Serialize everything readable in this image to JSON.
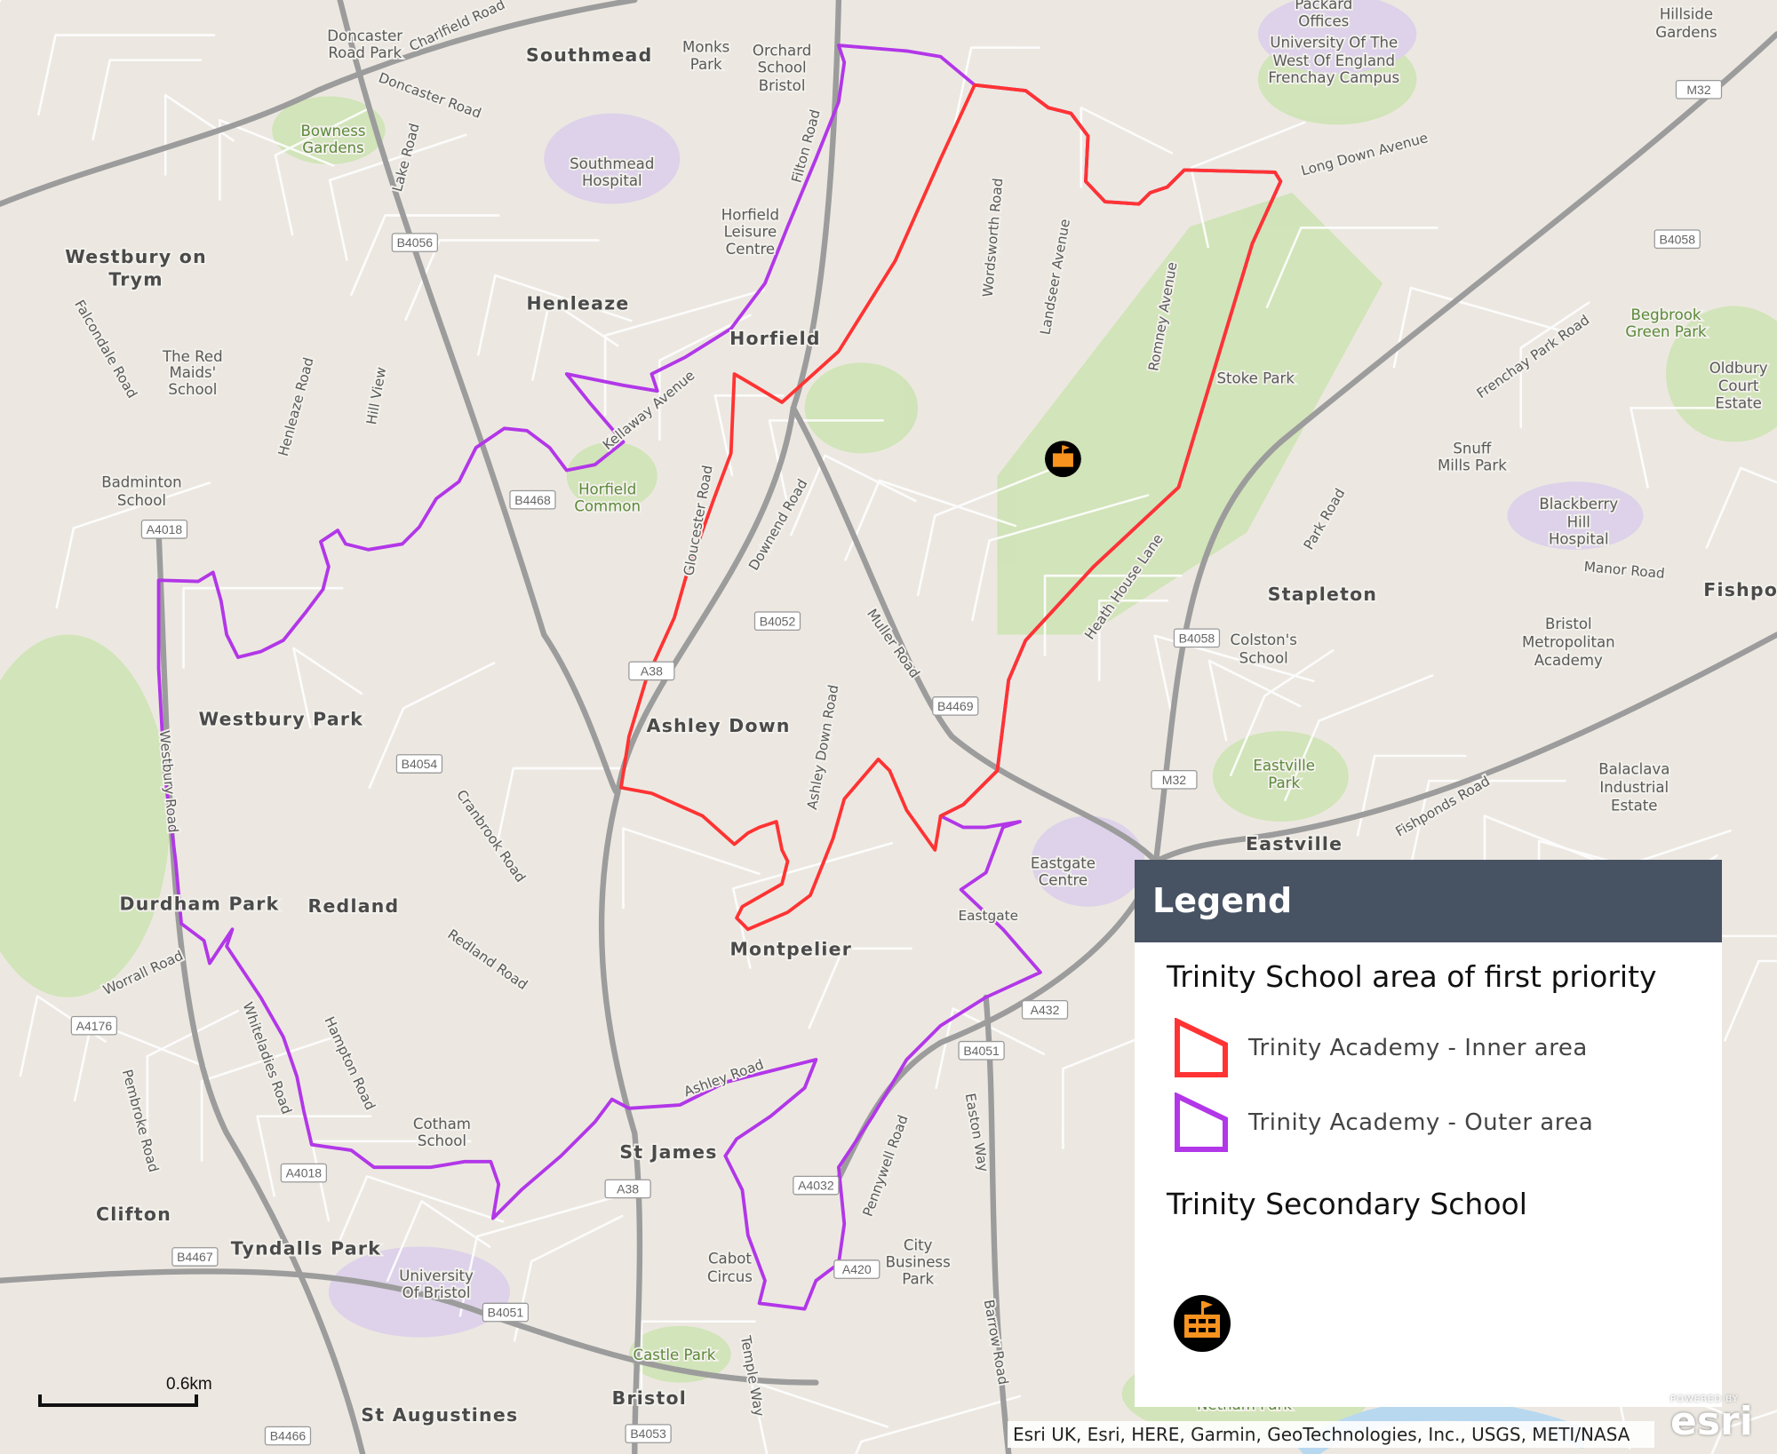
{
  "map": {
    "colors": {
      "inner_boundary": "#ff3333",
      "outer_boundary": "#b237e8",
      "header_bg": "#475263",
      "school_icon_fill": "#f7931e"
    },
    "school_marker_icon": "school-building-icon",
    "places": [
      {
        "t": "Southmead",
        "c": "big"
      },
      {
        "t": "Henleaze",
        "c": "big"
      },
      {
        "t": "Horfield",
        "c": "big"
      },
      {
        "t": "Westbury on",
        "c": "big"
      },
      {
        "t": "Trym",
        "c": "big"
      },
      {
        "t": "Westbury Park",
        "c": "big"
      },
      {
        "t": "Ashley Down",
        "c": "big"
      },
      {
        "t": "Redland",
        "c": "big"
      },
      {
        "t": "Durdham Park",
        "c": "big"
      },
      {
        "t": "Montpelier",
        "c": "big"
      },
      {
        "t": "St James",
        "c": "big"
      },
      {
        "t": "Clifton",
        "c": "big"
      },
      {
        "t": "Tyndalls Park",
        "c": "big"
      },
      {
        "t": "St Augustines",
        "c": "big"
      },
      {
        "t": "Bristol",
        "c": "big"
      },
      {
        "t": "Stapleton",
        "c": "big"
      },
      {
        "t": "Eastville",
        "c": "big"
      },
      {
        "t": "Fishpo",
        "c": "big"
      },
      {
        "t": "Bowness",
        "c": "park"
      },
      {
        "t": "Gardens",
        "c": "park"
      },
      {
        "t": "Horfield",
        "c": "park"
      },
      {
        "t": "Common",
        "c": "park"
      },
      {
        "t": "Stoke Park",
        "c": ""
      },
      {
        "t": "Eastville",
        "c": "park"
      },
      {
        "t": "Park",
        "c": "park"
      },
      {
        "t": "Castle Park",
        "c": "park"
      },
      {
        "t": "Netham Park",
        "c": "park"
      },
      {
        "t": "Begbrook",
        "c": "park"
      },
      {
        "t": "Green Park",
        "c": "park"
      },
      {
        "t": "Southmead",
        "c": ""
      },
      {
        "t": "Hospital",
        "c": ""
      },
      {
        "t": "Horfield",
        "c": ""
      },
      {
        "t": "Leisure",
        "c": ""
      },
      {
        "t": "Centre",
        "c": ""
      },
      {
        "t": "The Red",
        "c": ""
      },
      {
        "t": "Maids'",
        "c": ""
      },
      {
        "t": "School",
        "c": ""
      },
      {
        "t": "Badminton",
        "c": ""
      },
      {
        "t": "School",
        "c": ""
      },
      {
        "t": "University Of The",
        "c": ""
      },
      {
        "t": "West Of England",
        "c": ""
      },
      {
        "t": "Frenchay Campus",
        "c": ""
      },
      {
        "t": "Orchard",
        "c": ""
      },
      {
        "t": "School",
        "c": ""
      },
      {
        "t": "Bristol",
        "c": ""
      },
      {
        "t": "Monks",
        "c": ""
      },
      {
        "t": "Park",
        "c": ""
      },
      {
        "t": "Colston's",
        "c": ""
      },
      {
        "t": "School",
        "c": ""
      },
      {
        "t": "Bristol",
        "c": ""
      },
      {
        "t": "Metropolitan",
        "c": ""
      },
      {
        "t": "Academy",
        "c": ""
      },
      {
        "t": "Blackberry",
        "c": ""
      },
      {
        "t": "Hill",
        "c": ""
      },
      {
        "t": "Hospital",
        "c": ""
      },
      {
        "t": "Snuff",
        "c": ""
      },
      {
        "t": "Mills Park",
        "c": ""
      },
      {
        "t": "Eastgate",
        "c": ""
      },
      {
        "t": "Centre",
        "c": ""
      },
      {
        "t": "Cotham",
        "c": ""
      },
      {
        "t": "School",
        "c": ""
      },
      {
        "t": "University",
        "c": ""
      },
      {
        "t": "Of Bristol",
        "c": ""
      },
      {
        "t": "Cabot",
        "c": ""
      },
      {
        "t": "Circus",
        "c": ""
      },
      {
        "t": "City",
        "c": ""
      },
      {
        "t": "Business",
        "c": ""
      },
      {
        "t": "Park",
        "c": ""
      },
      {
        "t": "Balaclava",
        "c": ""
      },
      {
        "t": "Industrial",
        "c": ""
      },
      {
        "t": "Estate",
        "c": ""
      },
      {
        "t": "Oldbury",
        "c": ""
      },
      {
        "t": "Court",
        "c": ""
      },
      {
        "t": "Estate",
        "c": ""
      },
      {
        "t": "Doncaster",
        "c": ""
      },
      {
        "t": "Road Park",
        "c": ""
      },
      {
        "t": "Hillside",
        "c": ""
      },
      {
        "t": "Gardens",
        "c": ""
      },
      {
        "t": "Packard",
        "c": ""
      },
      {
        "t": "Offices",
        "c": ""
      }
    ],
    "roads": [
      "Long Down Avenue",
      "Frenchay Park Road",
      "Muller Road",
      "Gloucester Road",
      "Downend Road",
      "Ashley Down Road",
      "Heath House Lane",
      "Wordsworth Road",
      "Landseer Avenue",
      "Romney Avenue",
      "Filton Road",
      "Kellaway Avenue",
      "Henleaze Road",
      "Falcondale Road",
      "Westbury Road",
      "Whiteladies Road",
      "Cranbrook Road",
      "Redland Road",
      "Hampton Road",
      "Pembroke Road",
      "Worrall Road",
      "Eastgate",
      "Easton Way",
      "Pennywell Road",
      "Fishponds Road",
      "Manor Road",
      "Park Road",
      "Charlfield Road",
      "Doncaster Road",
      "Lake Road",
      "Hill View",
      "Temple Way",
      "Barrow Road",
      "Ashley Road"
    ],
    "road_shields": [
      "B4056",
      "B4468",
      "A4018",
      "B4054",
      "B4052",
      "A38",
      "B4469",
      "B4058",
      "M32",
      "A432",
      "B4051",
      "A4032",
      "A420",
      "B4051",
      "A4018",
      "B4467",
      "A4176",
      "B4058",
      "M32",
      "A38",
      "B4053",
      "B4466"
    ]
  },
  "scale": {
    "label": "0.6km"
  },
  "legend": {
    "title": "Legend",
    "section1_title": "Trinity School area of first priority",
    "items": [
      {
        "label": "Trinity Academy - Inner area",
        "color": "#ff3333"
      },
      {
        "label": "Trinity Academy - Outer area",
        "color": "#b237e8"
      }
    ],
    "section2_title": "Trinity Secondary School"
  },
  "attribution": "Esri UK, Esri, HERE, Garmin, GeoTechnologies, Inc., USGS, METI/NASA",
  "esri_logo": {
    "powered_by": "POWERED BY",
    "name": "esri"
  }
}
